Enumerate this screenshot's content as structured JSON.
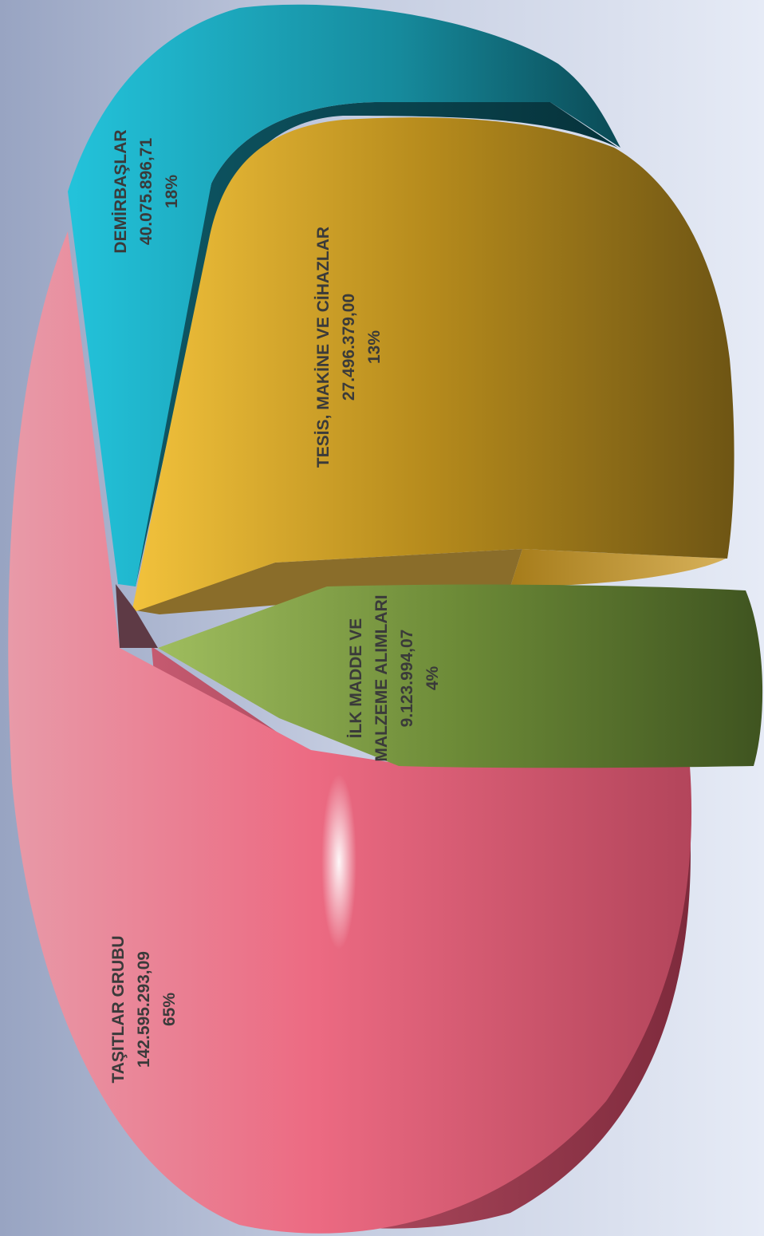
{
  "chart_data": {
    "type": "pie",
    "orientation": "rotated-90",
    "style": "3d-exploded",
    "slices": [
      {
        "label": "TAŞITLAR GRUBU",
        "value_text": "142.595.293,09",
        "value": 142595293.09,
        "percent_text": "65%",
        "percent": 65,
        "color": "#e0607a",
        "dark": "#b03c55"
      },
      {
        "label": "DEMİRBAŞLAR",
        "value_text": "40.075.896,71",
        "value": 40075896.71,
        "percent_text": "18%",
        "percent": 18,
        "color": "#1fb2c8",
        "dark": "#0b5563"
      },
      {
        "label": "TESİS, MAKİNE VE CİHAZLAR",
        "value_text": "27.496.379,00",
        "value": 27496379.0,
        "percent_text": "13%",
        "percent": 13,
        "color": "#e9b522",
        "dark": "#7a5a12"
      },
      {
        "label_lines": [
          "İLK MADDE VE",
          "MALZEME ALIMLARI"
        ],
        "value_text": "9.123.994,07",
        "value": 9123994.07,
        "percent_text": "4%",
        "percent": 4,
        "color": "#8fa84a",
        "dark": "#4b5f26"
      }
    ]
  }
}
